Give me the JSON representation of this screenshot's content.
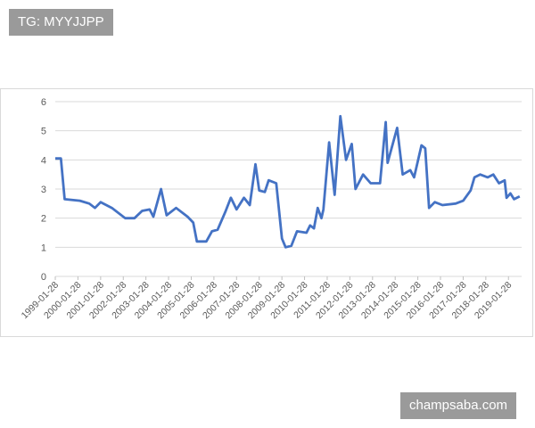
{
  "watermark_top": "TG: MYYJJPP",
  "watermark_bottom": "champsaba.com",
  "chart_data": {
    "type": "line",
    "x": [
      "1999-01-28",
      "1999-04-28",
      "1999-06-28",
      "2000-02-28",
      "2000-07-28",
      "2000-10-28",
      "2001-01-28",
      "2001-07-28",
      "2002-02-28",
      "2002-07-28",
      "2002-11-28",
      "2003-03-28",
      "2003-05-28",
      "2003-09-28",
      "2003-12-28",
      "2004-05-28",
      "2004-11-28",
      "2005-02-28",
      "2005-04-28",
      "2005-09-28",
      "2005-12-28",
      "2006-03-28",
      "2006-07-28",
      "2006-10-28",
      "2007-01-28",
      "2007-05-28",
      "2007-08-28",
      "2007-11-28",
      "2008-01-28",
      "2008-04-28",
      "2008-06-28",
      "2008-10-28",
      "2009-01-28",
      "2009-03-28",
      "2009-06-28",
      "2009-09-28",
      "2010-02-28",
      "2010-04-28",
      "2010-06-28",
      "2010-08-28",
      "2010-10-28",
      "2010-11-28",
      "2011-02-28",
      "2011-05-28",
      "2011-08-28",
      "2011-11-28",
      "2012-02-28",
      "2012-04-28",
      "2012-08-28",
      "2012-12-28",
      "2013-05-28",
      "2013-08-28",
      "2013-09-28",
      "2014-02-28",
      "2014-05-28",
      "2014-09-28",
      "2014-11-28",
      "2015-03-28",
      "2015-05-28",
      "2015-07-28",
      "2015-10-28",
      "2016-02-28",
      "2016-09-28",
      "2017-01-28",
      "2017-05-28",
      "2017-07-28",
      "2017-10-28",
      "2018-02-28",
      "2018-05-28",
      "2018-08-28",
      "2018-11-28",
      "2018-12-28",
      "2019-02-28",
      "2019-04-28",
      "2019-07-28"
    ],
    "series": [
      {
        "color": "#4472c4",
        "values": [
          4.05,
          4.05,
          2.65,
          2.6,
          2.5,
          2.35,
          2.55,
          2.35,
          2.0,
          2.0,
          2.25,
          2.3,
          2.05,
          3.0,
          2.1,
          2.35,
          2.05,
          1.85,
          1.2,
          1.2,
          1.55,
          1.6,
          2.2,
          2.7,
          2.3,
          2.7,
          2.45,
          3.85,
          2.95,
          2.9,
          3.3,
          3.2,
          1.3,
          1.0,
          1.05,
          1.55,
          1.5,
          1.75,
          1.65,
          2.35,
          2.0,
          2.3,
          4.6,
          2.8,
          5.5,
          4.0,
          4.55,
          3.0,
          3.5,
          3.2,
          3.2,
          5.3,
          3.9,
          5.1,
          3.5,
          3.65,
          3.4,
          4.5,
          4.4,
          2.35,
          2.55,
          2.45,
          2.5,
          2.6,
          2.95,
          3.4,
          3.5,
          3.4,
          3.5,
          3.2,
          3.3,
          2.7,
          2.85,
          2.65,
          2.75
        ]
      }
    ],
    "xlim": [
      "1999-01-28",
      "2019-08-28"
    ],
    "xticks": [
      "1999-01-28",
      "2000-01-28",
      "2001-01-28",
      "2002-01-28",
      "2003-01-28",
      "2004-01-28",
      "2005-01-28",
      "2006-01-28",
      "2007-01-28",
      "2008-01-28",
      "2009-01-28",
      "2010-01-28",
      "2011-01-28",
      "2012-01-28",
      "2013-01-28",
      "2014-01-28",
      "2015-01-28",
      "2016-01-28",
      "2017-01-28",
      "2018-01-28",
      "2019-01-28"
    ],
    "ylim": [
      0,
      6
    ],
    "yticks": [
      0,
      1,
      2,
      3,
      4,
      5,
      6
    ],
    "grid": true
  }
}
